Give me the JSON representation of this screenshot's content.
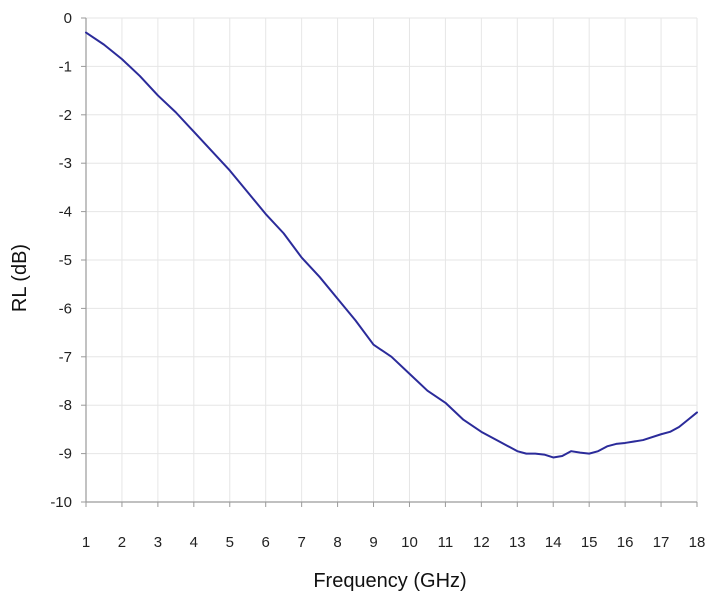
{
  "chart_data": {
    "type": "line",
    "title": "",
    "xlabel": "Frequency (GHz)",
    "ylabel": "RL (dB)",
    "xlim": [
      1,
      18
    ],
    "ylim": [
      -10,
      0
    ],
    "xticks": [
      1,
      2,
      3,
      4,
      5,
      6,
      7,
      8,
      9,
      10,
      11,
      12,
      13,
      14,
      15,
      16,
      17,
      18
    ],
    "yticks": [
      0,
      -1,
      -2,
      -3,
      -4,
      -5,
      -6,
      -7,
      -8,
      -9,
      -10
    ],
    "grid": true,
    "legend": "none",
    "series": [
      {
        "color": "#2b2b9a",
        "x": [
          1,
          1.5,
          2,
          2.5,
          3,
          3.5,
          4,
          4.5,
          5,
          5.5,
          6,
          6.5,
          7,
          7.5,
          8,
          8.5,
          9,
          9.5,
          10,
          10.5,
          11,
          11.5,
          12,
          12.5,
          13,
          13.25,
          13.5,
          13.75,
          14,
          14.25,
          14.5,
          14.75,
          15,
          15.25,
          15.5,
          15.75,
          16,
          16.5,
          17,
          17.25,
          17.5,
          17.75,
          18
        ],
        "y": [
          -0.3,
          -0.55,
          -0.85,
          -1.2,
          -1.6,
          -1.95,
          -2.35,
          -2.75,
          -3.15,
          -3.6,
          -4.05,
          -4.45,
          -4.95,
          -5.35,
          -5.8,
          -6.25,
          -6.75,
          -7.0,
          -7.35,
          -7.7,
          -7.95,
          -8.3,
          -8.55,
          -8.75,
          -8.95,
          -9.0,
          -9.0,
          -9.02,
          -9.08,
          -9.05,
          -8.95,
          -8.98,
          -9.0,
          -8.95,
          -8.85,
          -8.8,
          -8.78,
          -8.72,
          -8.6,
          -8.55,
          -8.45,
          -8.3,
          -8.15
        ]
      }
    ]
  }
}
